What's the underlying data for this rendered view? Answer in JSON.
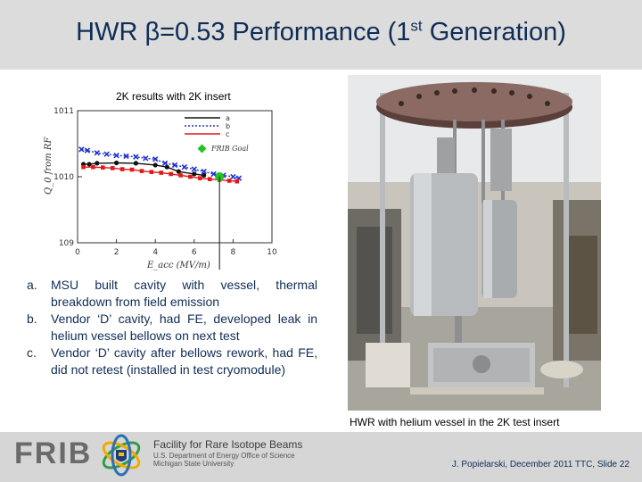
{
  "slide": {
    "title_prefix": "HWR β=0.53 Performance (1",
    "title_sup": "st",
    "title_suffix": " Generation)"
  },
  "chart_data": {
    "type": "scatter",
    "caption": "2K results with 2K insert",
    "xlabel": "E_acc (MV/m)",
    "ylabel": "Q_0 from RF",
    "x_ticks": [
      "0",
      "2",
      "4",
      "6",
      "8",
      "10"
    ],
    "y_ticks": [
      "10^9",
      "10^10",
      "10^11"
    ],
    "xlim": [
      0,
      10
    ],
    "ylim_log10": [
      9,
      11
    ],
    "legend": [
      "a",
      "b",
      "c"
    ],
    "legend_placement": "top-right",
    "annotation": "FRIB Goal",
    "series": [
      {
        "name": "a",
        "color": "#111111",
        "marker": "circle",
        "x": [
          0.3,
          0.6,
          1.0,
          2.0,
          3.0,
          4.0,
          4.6,
          5.2,
          6.0,
          6.5
        ],
        "y": [
          15500000000.0,
          15500000000.0,
          16000000000.0,
          16200000000.0,
          16000000000.0,
          15000000000.0,
          14000000000.0,
          12000000000.0,
          11000000000.0,
          10500000000.0
        ]
      },
      {
        "name": "b",
        "color": "#1f2fd6",
        "marker": "x",
        "x": [
          0.2,
          0.5,
          1.0,
          1.5,
          2.0,
          2.5,
          3.0,
          3.5,
          4.0,
          4.5,
          5.0,
          5.5,
          6.0,
          6.5,
          7.0,
          7.5,
          8.0,
          8.3
        ],
        "y": [
          26000000000.0,
          25000000000.0,
          23000000000.0,
          22000000000.0,
          21000000000.0,
          20500000000.0,
          20000000000.0,
          19000000000.0,
          18500000000.0,
          16000000000.0,
          15000000000.0,
          14000000000.0,
          13000000000.0,
          12000000000.0,
          11000000000.0,
          10500000000.0,
          10000000000.0,
          9500000000.0
        ]
      },
      {
        "name": "c",
        "color": "#e01919",
        "marker": "square",
        "x": [
          0.3,
          0.8,
          1.3,
          1.8,
          2.3,
          2.8,
          3.3,
          3.8,
          4.3,
          4.8,
          5.3,
          5.8,
          6.3,
          6.8,
          7.3,
          7.8,
          8.2
        ],
        "y": [
          14000000000.0,
          14000000000.0,
          13800000000.0,
          13500000000.0,
          13000000000.0,
          12800000000.0,
          12200000000.0,
          11800000000.0,
          11500000000.0,
          11000000000.0,
          10500000000.0,
          10000000000.0,
          9500000000.0,
          9200000000.0,
          9000000000.0,
          8700000000.0,
          8500000000.0
        ]
      }
    ],
    "goal_point": {
      "x": 7.3,
      "y": 10000000000.0,
      "color": "#22c322"
    }
  },
  "notes": [
    {
      "marker": "a.",
      "text": "MSU built cavity with vessel, thermal breakdown from field emission"
    },
    {
      "marker": "b.",
      "text": "Vendor ‘D’ cavity, had FE, developed leak in helium vessel bellows on next test"
    },
    {
      "marker": "c.",
      "text": "Vendor ‘D’ cavity after bellows rework, had FE, did not retest (installed in test cryomodule)"
    }
  ],
  "photo": {
    "caption": "HWR with helium vessel in the 2K test insert"
  },
  "footer": {
    "logo_text": "FRIB",
    "org_name": "Facility for Rare Isotope Beams",
    "org_line1": "U.S. Department of Energy Office of Science",
    "org_line2": "Michigan State University",
    "credit": "J. Popielarski, December 2011 TTC, Slide 22"
  }
}
